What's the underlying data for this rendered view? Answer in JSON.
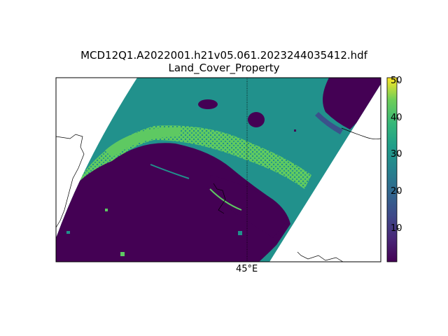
{
  "figure": {
    "title_line1": "MCD12Q1.A2022001.h21v05.061.2023244035412.hdf",
    "title_line2": "Land_Cover_Property"
  },
  "map": {
    "projection_graticule_label": "45°E",
    "colormap": "viridis",
    "data_range": [
      1,
      51
    ],
    "land_cover_colors": {
      "low": "#440154",
      "mid_low": "#3b518b",
      "mid": "#21918c",
      "mid_high": "#5ec962",
      "high": "#fde725"
    }
  },
  "colorbar": {
    "ticks": [
      "50",
      "40",
      "30",
      "20",
      "10"
    ],
    "tick_values": [
      50,
      40,
      30,
      20,
      10
    ],
    "min": 1,
    "max": 51
  }
}
